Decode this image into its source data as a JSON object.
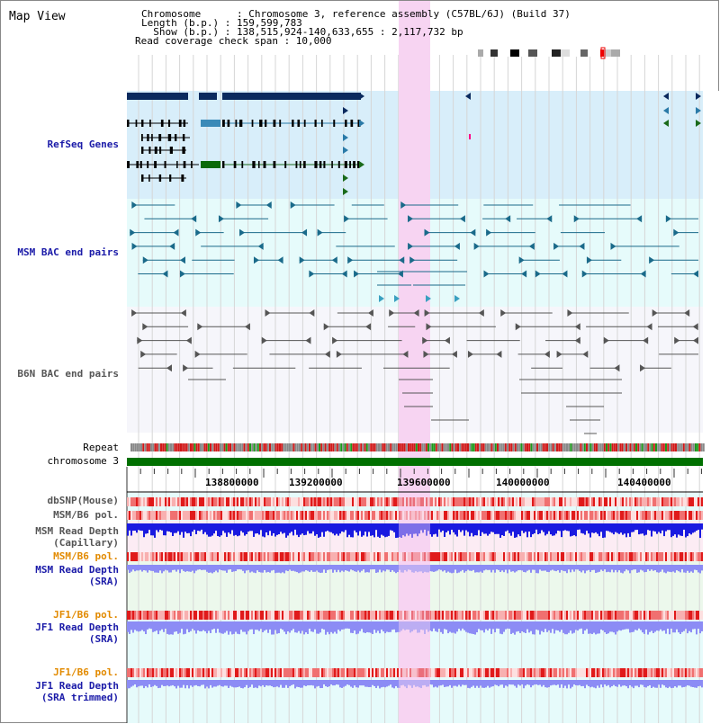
{
  "header": {
    "title": "Map View",
    "chromosome_line": "Chromosome      : Chromosome 3, reference assembly (C57BL/6J) (Build 37)",
    "length_line": "Length (b.p.) : 159,599,783",
    "show_line": "  Show (b.p.) : 138,515,924-140,633,655 : 2,117,732 bp",
    "coverage_line": "Read coverage check span : 10,000"
  },
  "tracks": {
    "refseq": "RefSeq Genes",
    "msm_bac": "MSM BAC end pairs",
    "b6n_bac": "B6N BAC end pairs",
    "repeat": "Repeat",
    "chromosome": "chromosome 3",
    "dbsnp": "dbSNP(Mouse)",
    "msm_b6_pol": "MSM/B6 pol.",
    "msm_depth_cap_1": "MSM Read Depth",
    "msm_depth_cap_2": "(Capillary)",
    "msm_b6_pol_2": "MSM/B6 pol.",
    "msm_depth_sra_1": "MSM Read Depth",
    "msm_depth_sra_2": "(SRA)",
    "jf1_b6_pol": "JF1/B6 pol.",
    "jf1_depth_sra_1": "JF1 Read Depth",
    "jf1_depth_sra_2": "(SRA)",
    "jf1_b6_pol_2": "JF1/B6 pol.",
    "jf1_depth_trim_1": "JF1 Read Depth",
    "jf1_depth_trim_2": "(SRA trimmed)"
  },
  "ruler": {
    "ticks": [
      "138800000",
      "139200000",
      "139600000",
      "140000000",
      "140400000"
    ]
  },
  "colors": {
    "refseq_bg": "#d8eefa",
    "bac_bg": "#e6fbfb",
    "highlight": "#f7d4f2",
    "chromosome_bar": "#007000",
    "depth_blue": "#1a1ae0",
    "depth_light": "#8c8cf5"
  },
  "icons": {
    "ideogram": "chromosome-ideogram-icon"
  }
}
